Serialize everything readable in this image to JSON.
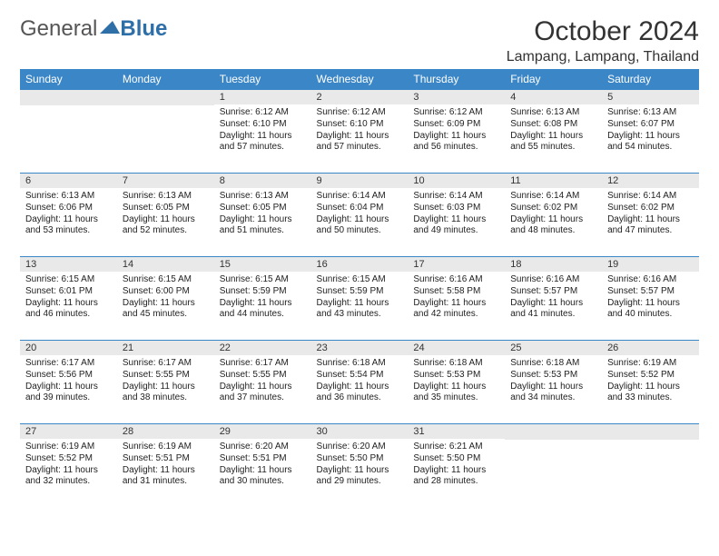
{
  "logo": {
    "word1": "General",
    "word2": "Blue",
    "tri_color": "#2f6fa8"
  },
  "title": "October 2024",
  "location": "Lampang, Lampang, Thailand",
  "colors": {
    "header_bg": "#3b86c6",
    "band_bg": "#e9e9e9",
    "border": "#3b86c6"
  },
  "font": {
    "title_size": 30,
    "location_size": 16,
    "dayhead_size": 12,
    "body_size": 10
  },
  "day_headers": [
    "Sunday",
    "Monday",
    "Tuesday",
    "Wednesday",
    "Thursday",
    "Friday",
    "Saturday"
  ],
  "weeks": [
    [
      null,
      null,
      {
        "n": "1",
        "sr": "Sunrise: 6:12 AM",
        "ss": "Sunset: 6:10 PM",
        "d1": "Daylight: 11 hours",
        "d2": "and 57 minutes."
      },
      {
        "n": "2",
        "sr": "Sunrise: 6:12 AM",
        "ss": "Sunset: 6:10 PM",
        "d1": "Daylight: 11 hours",
        "d2": "and 57 minutes."
      },
      {
        "n": "3",
        "sr": "Sunrise: 6:12 AM",
        "ss": "Sunset: 6:09 PM",
        "d1": "Daylight: 11 hours",
        "d2": "and 56 minutes."
      },
      {
        "n": "4",
        "sr": "Sunrise: 6:13 AM",
        "ss": "Sunset: 6:08 PM",
        "d1": "Daylight: 11 hours",
        "d2": "and 55 minutes."
      },
      {
        "n": "5",
        "sr": "Sunrise: 6:13 AM",
        "ss": "Sunset: 6:07 PM",
        "d1": "Daylight: 11 hours",
        "d2": "and 54 minutes."
      }
    ],
    [
      {
        "n": "6",
        "sr": "Sunrise: 6:13 AM",
        "ss": "Sunset: 6:06 PM",
        "d1": "Daylight: 11 hours",
        "d2": "and 53 minutes."
      },
      {
        "n": "7",
        "sr": "Sunrise: 6:13 AM",
        "ss": "Sunset: 6:05 PM",
        "d1": "Daylight: 11 hours",
        "d2": "and 52 minutes."
      },
      {
        "n": "8",
        "sr": "Sunrise: 6:13 AM",
        "ss": "Sunset: 6:05 PM",
        "d1": "Daylight: 11 hours",
        "d2": "and 51 minutes."
      },
      {
        "n": "9",
        "sr": "Sunrise: 6:14 AM",
        "ss": "Sunset: 6:04 PM",
        "d1": "Daylight: 11 hours",
        "d2": "and 50 minutes."
      },
      {
        "n": "10",
        "sr": "Sunrise: 6:14 AM",
        "ss": "Sunset: 6:03 PM",
        "d1": "Daylight: 11 hours",
        "d2": "and 49 minutes."
      },
      {
        "n": "11",
        "sr": "Sunrise: 6:14 AM",
        "ss": "Sunset: 6:02 PM",
        "d1": "Daylight: 11 hours",
        "d2": "and 48 minutes."
      },
      {
        "n": "12",
        "sr": "Sunrise: 6:14 AM",
        "ss": "Sunset: 6:02 PM",
        "d1": "Daylight: 11 hours",
        "d2": "and 47 minutes."
      }
    ],
    [
      {
        "n": "13",
        "sr": "Sunrise: 6:15 AM",
        "ss": "Sunset: 6:01 PM",
        "d1": "Daylight: 11 hours",
        "d2": "and 46 minutes."
      },
      {
        "n": "14",
        "sr": "Sunrise: 6:15 AM",
        "ss": "Sunset: 6:00 PM",
        "d1": "Daylight: 11 hours",
        "d2": "and 45 minutes."
      },
      {
        "n": "15",
        "sr": "Sunrise: 6:15 AM",
        "ss": "Sunset: 5:59 PM",
        "d1": "Daylight: 11 hours",
        "d2": "and 44 minutes."
      },
      {
        "n": "16",
        "sr": "Sunrise: 6:15 AM",
        "ss": "Sunset: 5:59 PM",
        "d1": "Daylight: 11 hours",
        "d2": "and 43 minutes."
      },
      {
        "n": "17",
        "sr": "Sunrise: 6:16 AM",
        "ss": "Sunset: 5:58 PM",
        "d1": "Daylight: 11 hours",
        "d2": "and 42 minutes."
      },
      {
        "n": "18",
        "sr": "Sunrise: 6:16 AM",
        "ss": "Sunset: 5:57 PM",
        "d1": "Daylight: 11 hours",
        "d2": "and 41 minutes."
      },
      {
        "n": "19",
        "sr": "Sunrise: 6:16 AM",
        "ss": "Sunset: 5:57 PM",
        "d1": "Daylight: 11 hours",
        "d2": "and 40 minutes."
      }
    ],
    [
      {
        "n": "20",
        "sr": "Sunrise: 6:17 AM",
        "ss": "Sunset: 5:56 PM",
        "d1": "Daylight: 11 hours",
        "d2": "and 39 minutes."
      },
      {
        "n": "21",
        "sr": "Sunrise: 6:17 AM",
        "ss": "Sunset: 5:55 PM",
        "d1": "Daylight: 11 hours",
        "d2": "and 38 minutes."
      },
      {
        "n": "22",
        "sr": "Sunrise: 6:17 AM",
        "ss": "Sunset: 5:55 PM",
        "d1": "Daylight: 11 hours",
        "d2": "and 37 minutes."
      },
      {
        "n": "23",
        "sr": "Sunrise: 6:18 AM",
        "ss": "Sunset: 5:54 PM",
        "d1": "Daylight: 11 hours",
        "d2": "and 36 minutes."
      },
      {
        "n": "24",
        "sr": "Sunrise: 6:18 AM",
        "ss": "Sunset: 5:53 PM",
        "d1": "Daylight: 11 hours",
        "d2": "and 35 minutes."
      },
      {
        "n": "25",
        "sr": "Sunrise: 6:18 AM",
        "ss": "Sunset: 5:53 PM",
        "d1": "Daylight: 11 hours",
        "d2": "and 34 minutes."
      },
      {
        "n": "26",
        "sr": "Sunrise: 6:19 AM",
        "ss": "Sunset: 5:52 PM",
        "d1": "Daylight: 11 hours",
        "d2": "and 33 minutes."
      }
    ],
    [
      {
        "n": "27",
        "sr": "Sunrise: 6:19 AM",
        "ss": "Sunset: 5:52 PM",
        "d1": "Daylight: 11 hours",
        "d2": "and 32 minutes."
      },
      {
        "n": "28",
        "sr": "Sunrise: 6:19 AM",
        "ss": "Sunset: 5:51 PM",
        "d1": "Daylight: 11 hours",
        "d2": "and 31 minutes."
      },
      {
        "n": "29",
        "sr": "Sunrise: 6:20 AM",
        "ss": "Sunset: 5:51 PM",
        "d1": "Daylight: 11 hours",
        "d2": "and 30 minutes."
      },
      {
        "n": "30",
        "sr": "Sunrise: 6:20 AM",
        "ss": "Sunset: 5:50 PM",
        "d1": "Daylight: 11 hours",
        "d2": "and 29 minutes."
      },
      {
        "n": "31",
        "sr": "Sunrise: 6:21 AM",
        "ss": "Sunset: 5:50 PM",
        "d1": "Daylight: 11 hours",
        "d2": "and 28 minutes."
      },
      null,
      null
    ]
  ]
}
